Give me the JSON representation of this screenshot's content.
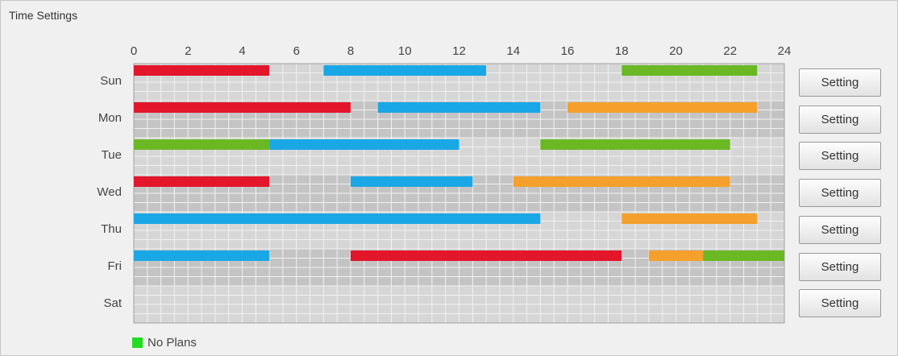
{
  "title": "Time Settings",
  "hour_ticks": [
    0,
    2,
    4,
    6,
    8,
    10,
    12,
    14,
    16,
    18,
    20,
    22,
    24
  ],
  "days": [
    {
      "label": "Sun",
      "button": "Setting",
      "segments": [
        {
          "start": 0,
          "end": 5,
          "color": "#e3162b"
        },
        {
          "start": 7,
          "end": 13,
          "color": "#1aa7e6"
        },
        {
          "start": 18,
          "end": 23,
          "color": "#6ab823"
        }
      ]
    },
    {
      "label": "Mon",
      "button": "Setting",
      "segments": [
        {
          "start": 0,
          "end": 8,
          "color": "#e3162b"
        },
        {
          "start": 9,
          "end": 15,
          "color": "#1aa7e6"
        },
        {
          "start": 16,
          "end": 23,
          "color": "#f5a02c"
        }
      ]
    },
    {
      "label": "Tue",
      "button": "Setting",
      "segments": [
        {
          "start": 0,
          "end": 5,
          "color": "#6ab823"
        },
        {
          "start": 5,
          "end": 12,
          "color": "#1aa7e6"
        },
        {
          "start": 15,
          "end": 22,
          "color": "#6ab823"
        }
      ]
    },
    {
      "label": "Wed",
      "button": "Setting",
      "segments": [
        {
          "start": 0,
          "end": 5,
          "color": "#e3162b"
        },
        {
          "start": 8,
          "end": 12.5,
          "color": "#1aa7e6"
        },
        {
          "start": 14,
          "end": 22,
          "color": "#f5a02c"
        }
      ]
    },
    {
      "label": "Thu",
      "button": "Setting",
      "segments": [
        {
          "start": 0,
          "end": 15,
          "color": "#1aa7e6"
        },
        {
          "start": 18,
          "end": 23,
          "color": "#f5a02c"
        }
      ]
    },
    {
      "label": "Fri",
      "button": "Setting",
      "segments": [
        {
          "start": 0,
          "end": 5,
          "color": "#1aa7e6"
        },
        {
          "start": 8,
          "end": 18,
          "color": "#e3162b"
        },
        {
          "start": 19,
          "end": 21,
          "color": "#f5a02c"
        },
        {
          "start": 21,
          "end": 24,
          "color": "#6ab823"
        }
      ]
    },
    {
      "label": "Sat",
      "button": "Setting",
      "segments": []
    }
  ],
  "legend": {
    "label": "No Plans",
    "color": "#22dd22"
  }
}
